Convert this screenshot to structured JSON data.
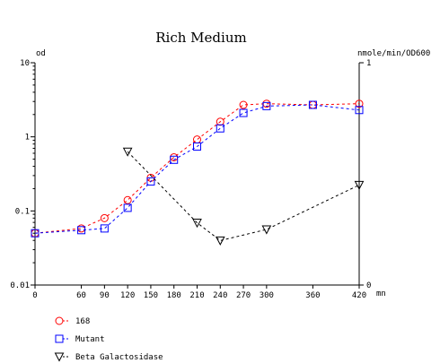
{
  "chart_data": {
    "type": "line",
    "title": "Rich Medium",
    "x_unit": "mn",
    "x_ticks": [
      "0",
      "60",
      "90",
      "120",
      "150",
      "180",
      "210",
      "240",
      "270",
      "300",
      "360",
      "420"
    ],
    "xlim": [
      0,
      420
    ],
    "left_axis": {
      "label": "od",
      "scale": "log",
      "ylim": [
        0.01,
        10
      ],
      "ticks": [
        "0.01",
        "0.1",
        "1",
        "10"
      ]
    },
    "right_axis": {
      "label": "nmole/min/OD600",
      "scale": "linear",
      "ylim": [
        0,
        1
      ],
      "ticks": [
        "0",
        "1"
      ]
    },
    "grid": false,
    "legend_position": "bottom-left",
    "series": [
      {
        "name": "168",
        "axis": "left",
        "marker": "circle",
        "color": "#ff0000",
        "line_color": "#ff0000",
        "x": [
          0,
          60,
          90,
          120,
          150,
          180,
          210,
          240,
          270,
          300,
          360,
          420
        ],
        "y": [
          0.05,
          0.058,
          0.08,
          0.14,
          0.28,
          0.53,
          0.92,
          1.6,
          2.7,
          2.8,
          2.7,
          2.8
        ]
      },
      {
        "name": "Mutant",
        "axis": "left",
        "marker": "square",
        "color": "#0000ff",
        "line_color": "#0000ff",
        "x": [
          0,
          60,
          90,
          120,
          150,
          180,
          210,
          240,
          270,
          300,
          360,
          420
        ],
        "y": [
          0.05,
          0.055,
          0.058,
          0.11,
          0.25,
          0.49,
          0.74,
          1.3,
          2.1,
          2.6,
          2.7,
          2.3
        ]
      },
      {
        "name": "Beta Galactosidase",
        "axis": "right",
        "marker": "triangle-down",
        "color": "#000000",
        "line_color": "#000000",
        "x": [
          120,
          210,
          240,
          300,
          420
        ],
        "y": [
          0.6,
          0.28,
          0.2,
          0.25,
          0.45
        ]
      }
    ]
  }
}
